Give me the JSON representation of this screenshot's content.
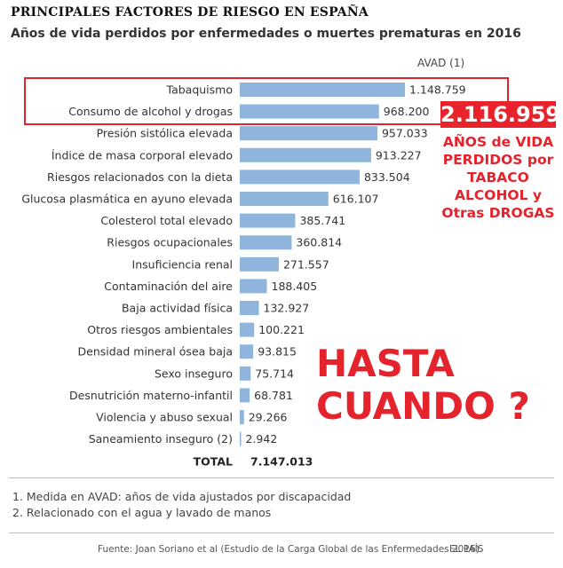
{
  "header": {
    "title": "PRINCIPALES FACTORES DE RIESGO EN ESPAÑA",
    "subtitle": "Años de vida perdidos por enfermedades o muertes prematuras en 2016"
  },
  "chart_data": {
    "type": "bar",
    "orientation": "horizontal",
    "unit_label": "AVAD (1)",
    "categories": [
      "Tabaquismo",
      "Consumo de alcohol y drogas",
      "Presión sistólica elevada",
      "Índice de masa corporal elevado",
      "Riesgos relacionados con la dieta",
      "Glucosa plasmática en ayuno elevada",
      "Colesterol total elevado",
      "Riesgos ocupacionales",
      "Insuficiencia renal",
      "Contaminación del aire",
      "Baja actividad física",
      "Otros riesgos ambientales",
      "Densidad mineral ósea baja",
      "Sexo inseguro",
      "Desnutrición materno-infantil",
      "Violencia y abuso sexual",
      "Saneamiento inseguro (2)"
    ],
    "values": [
      1148759,
      968200,
      957033,
      913227,
      833504,
      616107,
      385741,
      360814,
      271557,
      188405,
      132927,
      100221,
      93815,
      75714,
      68781,
      29266,
      2942
    ],
    "value_labels": [
      "1.148.759",
      "968.200",
      "957.033",
      "913.227",
      "833.504",
      "616.107",
      "385.741",
      "360.814",
      "271.557",
      "188.405",
      "132.927",
      "100.221",
      "93.815",
      "75.714",
      "68.781",
      "29.266",
      "2.942"
    ],
    "total_label": "TOTAL",
    "total_value": "7.147.013",
    "bar_color": "#8fb5dc",
    "grid": false,
    "legend": "none"
  },
  "annotations": {
    "highlight_number": "2.116.959",
    "highlight_caption": [
      "AÑOS de VIDA",
      "PERDIDOS por",
      "TABACO",
      "ALCOHOL y",
      "Otras DROGAS"
    ],
    "question": [
      "HASTA",
      "CUANDO ?"
    ],
    "accent_color": "#e4232c"
  },
  "footnotes": [
    "1. Medida en AVAD: años de vida ajustados por discapacidad",
    "2. Relacionado con el agua y lavado de manos"
  ],
  "footer": {
    "source": "Fuente: Joan Soriano et al (Estudio de la Carga Global de las Enfermedades 2016).",
    "brand": "EL PAÍS"
  }
}
